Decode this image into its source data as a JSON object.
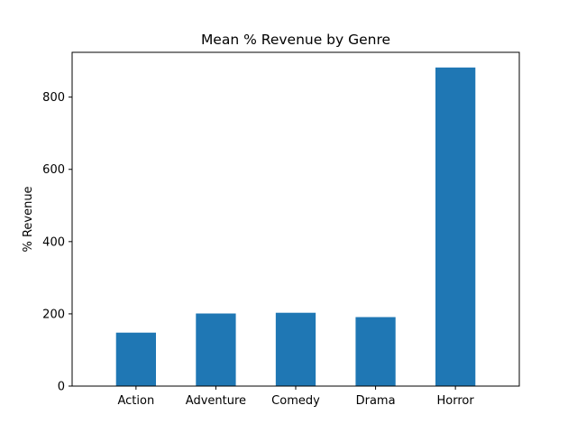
{
  "chart_data": {
    "type": "bar",
    "title": "Mean % Revenue by Genre",
    "xlabel": "",
    "ylabel": "% Revenue",
    "categories": [
      "Action",
      "Adventure",
      "Comedy",
      "Drama",
      "Horror"
    ],
    "values": [
      148,
      201,
      203,
      191,
      882
    ],
    "ylim": [
      0,
      924
    ],
    "yticks": [
      0,
      200,
      400,
      600,
      800
    ],
    "grid": false,
    "bar_color": "#1f77b4"
  }
}
